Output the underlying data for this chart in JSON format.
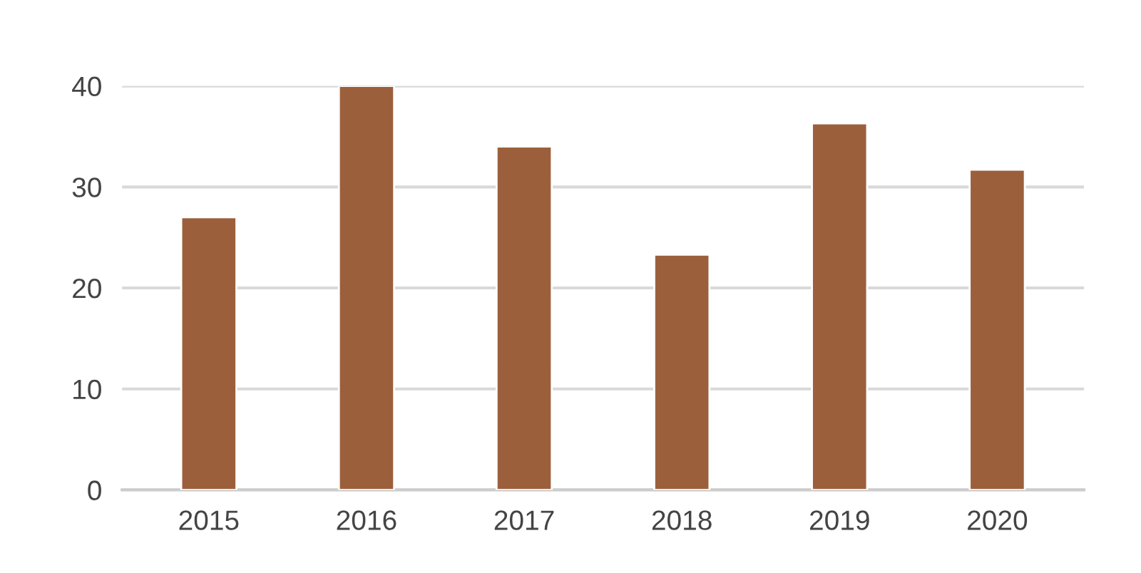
{
  "chart_data": {
    "type": "bar",
    "categories": [
      "2015",
      "2016",
      "2017",
      "2018",
      "2019",
      "2020"
    ],
    "values": [
      27,
      40,
      34,
      23.3,
      36.3,
      31.7
    ],
    "color": "#9c5f3c",
    "ylim": [
      0,
      40
    ],
    "yticks": [
      0,
      10,
      20,
      30,
      40
    ],
    "grid": "y"
  }
}
